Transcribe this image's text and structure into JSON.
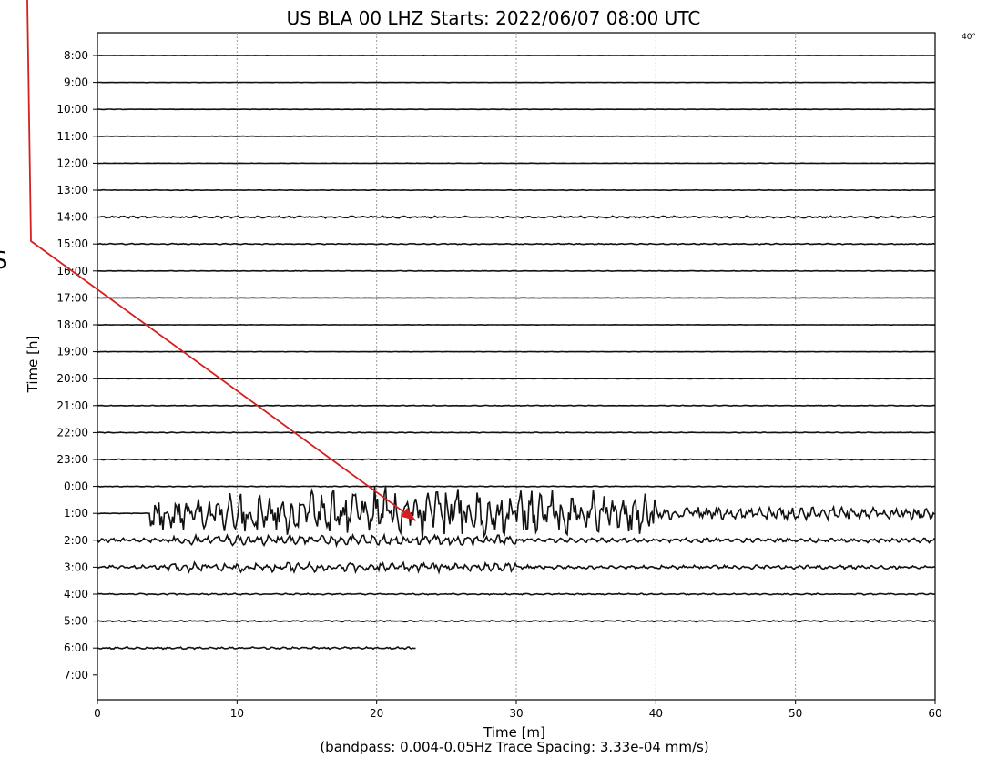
{
  "chart_data": {
    "type": "line",
    "title": "US BLA 00 LHZ  Starts: 2022/06/07 08:00 UTC",
    "xlabel": "Time [m]",
    "ylabel": "Time [h]",
    "subtitle": "(bandpass: 0.004-0.05Hz  Trace Spacing: 3.33e-04 mm/s)",
    "x_ticks": [
      "0",
      "10",
      "20",
      "30",
      "40",
      "50",
      "60"
    ],
    "xlim": [
      0,
      60
    ],
    "grid": "vertical dotted at x ticks",
    "row_labels": [
      "8:00",
      "9:00",
      "10:00",
      "11:00",
      "12:00",
      "13:00",
      "14:00",
      "15:00",
      "16:00",
      "17:00",
      "18:00",
      "19:00",
      "20:00",
      "21:00",
      "22:00",
      "23:00",
      "0:00",
      "1:00",
      "2:00",
      "3:00",
      "4:00",
      "5:00",
      "6:00",
      "7:00"
    ],
    "series": [
      {
        "hour": "8:00",
        "x_end": 60,
        "activity": 0.08
      },
      {
        "hour": "9:00",
        "x_end": 60,
        "activity": 0.08
      },
      {
        "hour": "10:00",
        "x_end": 60,
        "activity": 0.1
      },
      {
        "hour": "11:00",
        "x_end": 60,
        "activity": 0.1
      },
      {
        "hour": "12:00",
        "x_end": 60,
        "activity": 0.1
      },
      {
        "hour": "13:00",
        "x_end": 60,
        "activity": 0.15
      },
      {
        "hour": "14:00",
        "x_end": 60,
        "activity": 0.6
      },
      {
        "hour": "15:00",
        "x_end": 60,
        "activity": 0.3
      },
      {
        "hour": "16:00",
        "x_end": 60,
        "activity": 0.15
      },
      {
        "hour": "17:00",
        "x_end": 60,
        "activity": 0.1
      },
      {
        "hour": "18:00",
        "x_end": 60,
        "activity": 0.1
      },
      {
        "hour": "19:00",
        "x_end": 60,
        "activity": 0.1
      },
      {
        "hour": "20:00",
        "x_end": 60,
        "activity": 0.1
      },
      {
        "hour": "21:00",
        "x_end": 60,
        "activity": 0.2
      },
      {
        "hour": "22:00",
        "x_end": 60,
        "activity": 0.2
      },
      {
        "hour": "23:00",
        "x_end": 60,
        "activity": 0.25
      },
      {
        "hour": "0:00",
        "x_end": 60,
        "activity": 0.2
      },
      {
        "hour": "1:00",
        "x_end": 60,
        "activity": 1.0,
        "event_start": 3.8,
        "event_peak": 24,
        "event_end": 40
      },
      {
        "hour": "2:00",
        "x_end": 60,
        "activity": 0.7
      },
      {
        "hour": "3:00",
        "x_end": 60,
        "activity": 0.6
      },
      {
        "hour": "4:00",
        "x_end": 60,
        "activity": 0.4
      },
      {
        "hour": "5:00",
        "x_end": 60,
        "activity": 0.4
      },
      {
        "hour": "6:00",
        "x_end": 22.8,
        "activity": 0.6
      },
      {
        "hour": "7:00",
        "x_end": 0,
        "activity": 0
      }
    ],
    "annotation": {
      "type": "arrow",
      "color": "#d62020",
      "points_to": {
        "x": 22.8,
        "hour": "1:00"
      }
    },
    "corner_note": "40°",
    "side_letter": "S"
  }
}
